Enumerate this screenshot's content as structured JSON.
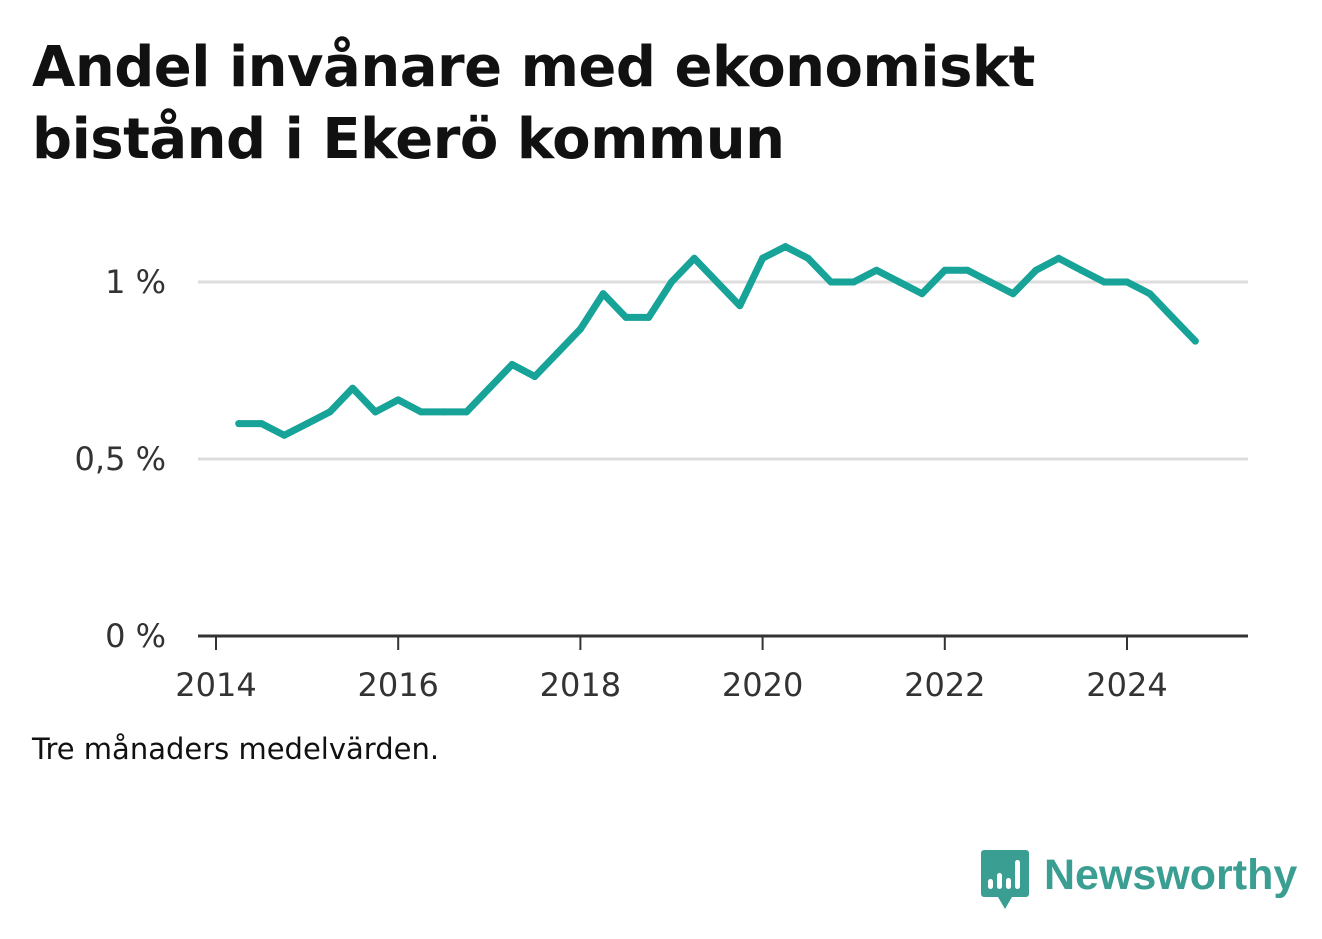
{
  "title": "Andel invånare med ekonomiskt bistånd i Ekerö kommun",
  "note": "Tre månaders medelvärden.",
  "brand": {
    "name": "Newsworthy",
    "icon": "bar-chart-speech-bubble-icon",
    "color": "#3b9e92"
  },
  "chart_data": {
    "type": "line",
    "title": "Andel invånare med ekonomiskt bistånd i Ekerö kommun",
    "xlabel": "",
    "ylabel": "",
    "x_ticks": [
      2014,
      2016,
      2018,
      2020,
      2022,
      2024
    ],
    "y_ticks": [
      {
        "value": 0,
        "label": "0 %"
      },
      {
        "value": 0.5,
        "label": "0,5 %"
      },
      {
        "value": 1,
        "label": "1 %"
      }
    ],
    "xlim": [
      2013.95,
      2025.4
    ],
    "ylim": [
      0,
      1.2
    ],
    "grid": true,
    "series": [
      {
        "color": "#17a398",
        "x": [
          2014.25,
          2014.5,
          2014.75,
          2015.0,
          2015.25,
          2015.5,
          2015.75,
          2016.0,
          2016.25,
          2016.5,
          2016.75,
          2017.0,
          2017.25,
          2017.5,
          2017.75,
          2018.0,
          2018.25,
          2018.5,
          2018.75,
          2019.0,
          2019.25,
          2019.5,
          2019.75,
          2020.0,
          2020.25,
          2020.5,
          2020.75,
          2021.0,
          2021.25,
          2021.5,
          2021.75,
          2022.0,
          2022.25,
          2022.5,
          2022.75,
          2023.0,
          2023.25,
          2023.5,
          2023.75,
          2024.0,
          2024.25,
          2024.5,
          2024.75
        ],
        "y": [
          0.6,
          0.6,
          0.567,
          0.6,
          0.633,
          0.7,
          0.633,
          0.667,
          0.633,
          0.633,
          0.633,
          0.7,
          0.767,
          0.733,
          0.8,
          0.867,
          0.967,
          0.9,
          0.9,
          1.0,
          1.067,
          1.0,
          0.933,
          1.067,
          1.1,
          1.067,
          1.0,
          1.0,
          1.033,
          1.0,
          0.967,
          1.033,
          1.033,
          1.0,
          0.967,
          1.033,
          1.067,
          1.033,
          1.0,
          1.0,
          0.967,
          0.9,
          0.833
        ]
      }
    ]
  }
}
